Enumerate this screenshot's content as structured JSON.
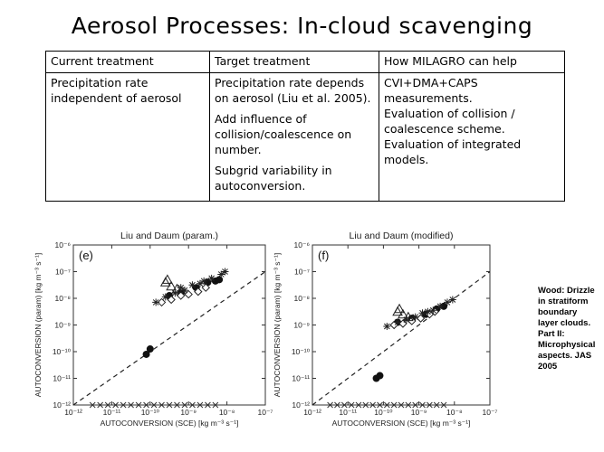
{
  "slide": {
    "title": "Aerosol Processes: In-cloud scavenging",
    "table": {
      "headers": [
        "Current treatment",
        "Target treatment",
        "How MILAGRO can help"
      ],
      "current": "Precipitation rate independent of aerosol",
      "target": [
        "Precipitation rate depends on aerosol (Liu et al. 2005).",
        "Add influence of collision/coalescence on number.",
        "Subgrid variability in autoconversion."
      ],
      "milagro": [
        "CVI+DMA+CAPS measurements.",
        "Evaluation of collision / coalescence scheme.",
        "Evaluation of integrated models."
      ]
    },
    "citation": "Wood: Drizzle in stratiform boundary layer clouds. Part II: Microphysical aspects. JAS 2005"
  },
  "chart_data": [
    {
      "type": "scatter",
      "title": "Liu and Daum (param.)",
      "panel_label": "(e)",
      "xlabel": "AUTOCONVERSION (SCE) [kg m⁻³ s⁻¹]",
      "ylabel": "AUTOCONVERSION (param) [kg m⁻³ s⁻¹]",
      "xscale": "log",
      "yscale": "log",
      "xlim_exp": [
        -12,
        -7
      ],
      "ylim_exp": [
        -12,
        -6
      ],
      "x_ticks": [
        "10⁻¹²",
        "10⁻¹¹",
        "10⁻¹⁰",
        "10⁻⁹",
        "10⁻⁸",
        "10⁻⁷"
      ],
      "y_ticks": [
        "10⁻¹²",
        "10⁻¹¹",
        "10⁻¹⁰",
        "10⁻⁹",
        "10⁻⁸",
        "10⁻⁷",
        "10⁻⁶"
      ],
      "reference_line": "1:1 dashed",
      "series": [
        {
          "marker": "filled-circle",
          "points_exp": [
            [
              -10.1,
              -10.1
            ],
            [
              -10.0,
              -9.9
            ],
            [
              -9.5,
              -7.9
            ],
            [
              -9.2,
              -7.8
            ],
            [
              -8.8,
              -7.6
            ],
            [
              -8.5,
              -7.4
            ],
            [
              -8.3,
              -7.35
            ],
            [
              -8.2,
              -7.3
            ]
          ]
        },
        {
          "marker": "open-diamond",
          "points_exp": [
            [
              -9.7,
              -8.15
            ],
            [
              -9.45,
              -8.05
            ],
            [
              -9.2,
              -7.9
            ],
            [
              -9.0,
              -7.85
            ],
            [
              -8.75,
              -7.75
            ],
            [
              -8.55,
              -7.6
            ]
          ]
        },
        {
          "marker": "open-triangle",
          "points_exp": [
            [
              -9.55,
              -7.3
            ],
            [
              -9.6,
              -7.4
            ],
            [
              -9.45,
              -7.55
            ],
            [
              -9.3,
              -7.65
            ]
          ]
        },
        {
          "marker": "asterisk",
          "points_exp": [
            [
              -9.85,
              -8.15
            ],
            [
              -9.6,
              -7.95
            ],
            [
              -9.35,
              -7.8
            ],
            [
              -9.1,
              -7.7
            ],
            [
              -8.9,
              -7.5
            ],
            [
              -8.6,
              -7.35
            ],
            [
              -8.4,
              -7.25
            ],
            [
              -8.15,
              -7.1
            ],
            [
              -8.05,
              -7.0
            ],
            [
              -8.7,
              -7.45
            ],
            [
              -9.2,
              -7.6
            ]
          ]
        },
        {
          "marker": "cross",
          "points_exp": [
            [
              -11.5,
              -12
            ],
            [
              -11.3,
              -12
            ],
            [
              -11.1,
              -12
            ],
            [
              -10.9,
              -12
            ],
            [
              -10.7,
              -12
            ],
            [
              -10.5,
              -12
            ],
            [
              -10.3,
              -12
            ],
            [
              -10.1,
              -12
            ],
            [
              -9.9,
              -12
            ],
            [
              -9.7,
              -12
            ],
            [
              -9.5,
              -12
            ],
            [
              -9.3,
              -12
            ],
            [
              -9.1,
              -12
            ],
            [
              -8.9,
              -12
            ],
            [
              -8.7,
              -12
            ],
            [
              -8.5,
              -12
            ],
            [
              -8.3,
              -12
            ]
          ]
        }
      ]
    },
    {
      "type": "scatter",
      "title": "Liu and Daum (modified)",
      "panel_label": "(f)",
      "xlabel": "AUTOCONVERSION (SCE) [kg m⁻³ s⁻¹]",
      "ylabel": "AUTOCONVERSION (param) [kg m⁻³ s⁻¹]",
      "xscale": "log",
      "yscale": "log",
      "xlim_exp": [
        -12,
        -7
      ],
      "ylim_exp": [
        -12,
        -6
      ],
      "x_ticks": [
        "10⁻¹²",
        "10⁻¹¹",
        "10⁻¹⁰",
        "10⁻⁹",
        "10⁻⁸",
        "10⁻⁷"
      ],
      "y_ticks": [
        "10⁻¹²",
        "10⁻¹¹",
        "10⁻¹⁰",
        "10⁻⁹",
        "10⁻⁸",
        "10⁻⁷",
        "10⁻⁶"
      ],
      "reference_line": "1:1 dashed",
      "series": [
        {
          "marker": "filled-circle",
          "points_exp": [
            [
              -10.2,
              -11.0
            ],
            [
              -10.1,
              -10.9
            ],
            [
              -9.6,
              -8.9
            ],
            [
              -9.2,
              -8.75
            ],
            [
              -8.8,
              -8.6
            ],
            [
              -8.5,
              -8.4
            ],
            [
              -8.3,
              -8.3
            ]
          ]
        },
        {
          "marker": "open-diamond",
          "points_exp": [
            [
              -9.7,
              -9.0
            ],
            [
              -9.45,
              -8.95
            ],
            [
              -9.2,
              -8.85
            ],
            [
              -8.95,
              -8.75
            ],
            [
              -8.7,
              -8.6
            ],
            [
              -8.55,
              -8.5
            ]
          ]
        },
        {
          "marker": "open-triangle",
          "points_exp": [
            [
              -9.55,
              -8.4
            ],
            [
              -9.6,
              -8.5
            ],
            [
              -9.45,
              -8.6
            ],
            [
              -9.3,
              -8.7
            ]
          ]
        },
        {
          "marker": "asterisk",
          "points_exp": [
            [
              -9.9,
              -9.05
            ],
            [
              -9.6,
              -8.9
            ],
            [
              -9.35,
              -8.8
            ],
            [
              -9.1,
              -8.7
            ],
            [
              -8.9,
              -8.55
            ],
            [
              -8.6,
              -8.45
            ],
            [
              -8.4,
              -8.3
            ],
            [
              -8.2,
              -8.15
            ],
            [
              -8.05,
              -8.05
            ],
            [
              -8.75,
              -8.5
            ]
          ]
        },
        {
          "marker": "cross",
          "points_exp": [
            [
              -11.5,
              -12
            ],
            [
              -11.3,
              -12
            ],
            [
              -11.1,
              -12
            ],
            [
              -10.9,
              -12
            ],
            [
              -10.7,
              -12
            ],
            [
              -10.5,
              -12
            ],
            [
              -10.3,
              -12
            ],
            [
              -10.1,
              -12
            ],
            [
              -9.9,
              -12
            ],
            [
              -9.7,
              -12
            ],
            [
              -9.5,
              -12
            ],
            [
              -9.3,
              -12
            ],
            [
              -9.1,
              -12
            ],
            [
              -8.9,
              -12
            ],
            [
              -8.7,
              -12
            ],
            [
              -8.5,
              -12
            ],
            [
              -8.3,
              -12
            ]
          ]
        }
      ]
    }
  ]
}
